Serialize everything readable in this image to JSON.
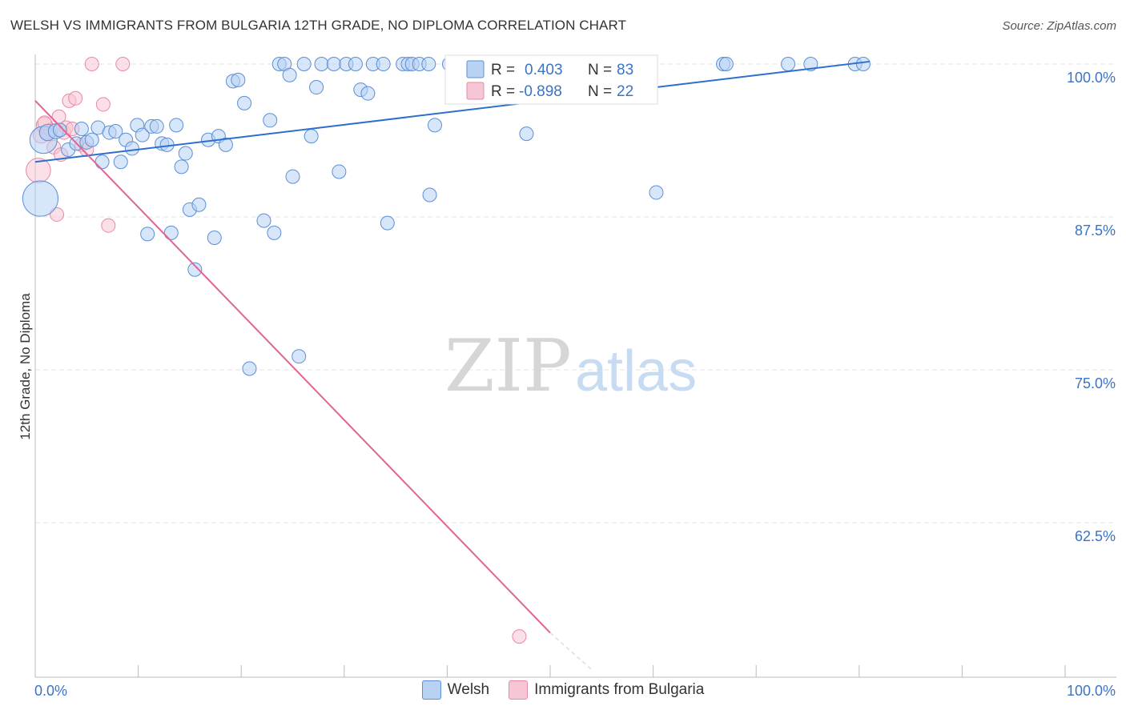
{
  "header": {
    "title": "WELSH VS IMMIGRANTS FROM BULGARIA 12TH GRADE, NO DIPLOMA CORRELATION CHART",
    "source": "Source: ZipAtlas.com"
  },
  "watermark": {
    "zip": "ZIP",
    "atlas": "atlas"
  },
  "colors": {
    "welsh_fill": "#b8d2f4",
    "welsh_stroke": "#5b8fd6",
    "welsh_line": "#2e6fce",
    "bulgaria_fill": "#f7c6d4",
    "bulgaria_stroke": "#e888a8",
    "bulgaria_line": "#e06592",
    "axis_text": "#3b73c7",
    "grid": "#e3e3e3"
  },
  "stats": {
    "welsh": {
      "r_label": "R =",
      "r_value": "0.403",
      "n_label": "N =",
      "n_value": "83"
    },
    "bulgaria": {
      "r_label": "R =",
      "r_value": "-0.898",
      "n_label": "N =",
      "n_value": "22"
    }
  },
  "chart_data": {
    "type": "scatter",
    "title": "WELSH VS IMMIGRANTS FROM BULGARIA 12TH GRADE, NO DIPLOMA CORRELATION CHART",
    "xlabel": "",
    "ylabel": "12th Grade, No Diploma",
    "xlim": [
      0,
      100
    ],
    "ylim": [
      50.5,
      101.5
    ],
    "x_tick_labels": [
      "0.0%",
      "100.0%"
    ],
    "y_ticks": [
      {
        "value": 100.0,
        "label": "100.0%"
      },
      {
        "value": 87.5,
        "label": "87.5%"
      },
      {
        "value": 75.0,
        "label": "75.0%"
      },
      {
        "value": 62.5,
        "label": "62.5%"
      }
    ],
    "grid": true,
    "legend_position": "bottom-center",
    "series": [
      {
        "name": "Welsh",
        "r": 0.403,
        "n": 83,
        "trend": {
          "x": [
            0,
            81
          ],
          "y": [
            92.0,
            100.2
          ]
        },
        "points": [
          [
            0.5,
            89.0,
            2.6
          ],
          [
            0.8,
            93.8,
            2.0
          ],
          [
            1.2,
            94.4,
            1.2
          ],
          [
            2.0,
            94.5,
            1.1
          ],
          [
            2.4,
            94.6,
            1.0
          ],
          [
            3.2,
            93.0,
            1.0
          ],
          [
            4.0,
            93.5,
            1.0
          ],
          [
            4.5,
            94.7,
            1.0
          ],
          [
            5.0,
            93.6,
            1.0
          ],
          [
            5.5,
            93.8,
            1.0
          ],
          [
            6.1,
            94.8,
            1.0
          ],
          [
            6.5,
            92.0,
            1.0
          ],
          [
            7.2,
            94.4,
            1.0
          ],
          [
            7.8,
            94.5,
            1.0
          ],
          [
            8.3,
            92.0,
            1.0
          ],
          [
            8.8,
            93.8,
            1.0
          ],
          [
            9.4,
            93.1,
            1.0
          ],
          [
            9.9,
            95.0,
            1.0
          ],
          [
            10.4,
            94.2,
            1.0
          ],
          [
            10.9,
            86.1,
            1.0
          ],
          [
            11.3,
            94.9,
            1.0
          ],
          [
            11.8,
            94.9,
            1.0
          ],
          [
            12.3,
            93.5,
            1.0
          ],
          [
            12.8,
            93.4,
            1.0
          ],
          [
            13.2,
            86.2,
            1.0
          ],
          [
            13.7,
            95.0,
            1.0
          ],
          [
            14.2,
            91.6,
            1.0
          ],
          [
            14.6,
            92.7,
            1.0
          ],
          [
            15.0,
            88.1,
            1.0
          ],
          [
            15.5,
            83.2,
            1.0
          ],
          [
            15.9,
            88.5,
            1.0
          ],
          [
            16.8,
            93.8,
            1.0
          ],
          [
            17.4,
            85.8,
            1.0
          ],
          [
            17.8,
            94.1,
            1.0
          ],
          [
            18.5,
            93.4,
            1.0
          ],
          [
            19.2,
            98.6,
            1.0
          ],
          [
            19.7,
            98.7,
            1.0
          ],
          [
            20.3,
            96.8,
            1.0
          ],
          [
            20.8,
            75.1,
            1.0
          ],
          [
            22.2,
            87.2,
            1.0
          ],
          [
            22.8,
            95.4,
            1.0
          ],
          [
            23.2,
            86.2,
            1.0
          ],
          [
            23.7,
            100.0,
            1.0
          ],
          [
            24.2,
            100.0,
            1.0
          ],
          [
            24.7,
            99.1,
            1.0
          ],
          [
            25.0,
            90.8,
            1.0
          ],
          [
            25.6,
            76.1,
            1.0
          ],
          [
            26.1,
            100.0,
            1.0
          ],
          [
            26.8,
            94.1,
            1.0
          ],
          [
            27.3,
            98.1,
            1.0
          ],
          [
            27.8,
            100.0,
            1.0
          ],
          [
            29.0,
            100.0,
            1.0
          ],
          [
            29.5,
            91.2,
            1.0
          ],
          [
            30.2,
            100.0,
            1.0
          ],
          [
            31.1,
            100.0,
            1.0
          ],
          [
            31.6,
            97.9,
            1.0
          ],
          [
            32.3,
            97.6,
            1.0
          ],
          [
            32.8,
            100.0,
            1.0
          ],
          [
            33.8,
            100.0,
            1.0
          ],
          [
            34.2,
            87.0,
            1.0
          ],
          [
            35.7,
            100.0,
            1.0
          ],
          [
            36.2,
            100.0,
            1.0
          ],
          [
            36.6,
            100.0,
            1.0
          ],
          [
            37.3,
            100.0,
            1.0
          ],
          [
            38.2,
            100.0,
            1.0
          ],
          [
            38.3,
            89.3,
            1.0
          ],
          [
            38.8,
            95.0,
            1.0
          ],
          [
            40.2,
            100.0,
            1.0
          ],
          [
            41.5,
            100.0,
            1.0
          ],
          [
            42.6,
            100.0,
            1.0
          ],
          [
            43.3,
            100.0,
            1.0
          ],
          [
            44.0,
            100.0,
            1.0
          ],
          [
            45.0,
            100.0,
            1.0
          ],
          [
            45.6,
            100.0,
            1.0
          ],
          [
            47.1,
            100.0,
            1.0
          ],
          [
            47.7,
            94.3,
            1.0
          ],
          [
            60.3,
            89.5,
            1.0
          ],
          [
            66.8,
            100.0,
            1.0
          ],
          [
            67.1,
            100.0,
            1.0
          ],
          [
            73.1,
            100.0,
            1.0
          ],
          [
            75.3,
            100.0,
            1.0
          ],
          [
            79.6,
            100.0,
            1.0
          ],
          [
            80.4,
            100.0,
            1.0
          ]
        ]
      },
      {
        "name": "Immigrants from Bulgaria",
        "r": -0.898,
        "n": 22,
        "trend": {
          "x": [
            0,
            50
          ],
          "y": [
            97.0,
            53.5
          ]
        },
        "trend_dashed": {
          "x": [
            50,
            54
          ],
          "y": [
            53.5,
            50.5
          ]
        },
        "points": [
          [
            0.3,
            91.3,
            1.8
          ],
          [
            0.6,
            94.2,
            1.2
          ],
          [
            0.9,
            95.0,
            1.2
          ],
          [
            1.2,
            94.4,
            1.0
          ],
          [
            1.5,
            94.6,
            1.0
          ],
          [
            1.8,
            93.2,
            1.0
          ],
          [
            2.1,
            87.7,
            1.0
          ],
          [
            2.3,
            95.7,
            1.0
          ],
          [
            2.5,
            92.6,
            1.0
          ],
          [
            2.8,
            94.4,
            1.0
          ],
          [
            3.0,
            94.8,
            1.0
          ],
          [
            3.3,
            97.0,
            1.0
          ],
          [
            3.6,
            94.7,
            1.0
          ],
          [
            3.9,
            97.2,
            1.0
          ],
          [
            4.5,
            93.4,
            1.0
          ],
          [
            5.0,
            93.0,
            1.0
          ],
          [
            5.5,
            100.0,
            1.0
          ],
          [
            6.6,
            96.7,
            1.0
          ],
          [
            7.1,
            86.8,
            1.0
          ],
          [
            8.5,
            100.0,
            1.0
          ],
          [
            47.0,
            53.2,
            1.0
          ],
          [
            0.9,
            95.2,
            1.0
          ]
        ]
      }
    ]
  },
  "legend": {
    "items": [
      "Welsh",
      "Immigrants from Bulgaria"
    ]
  }
}
